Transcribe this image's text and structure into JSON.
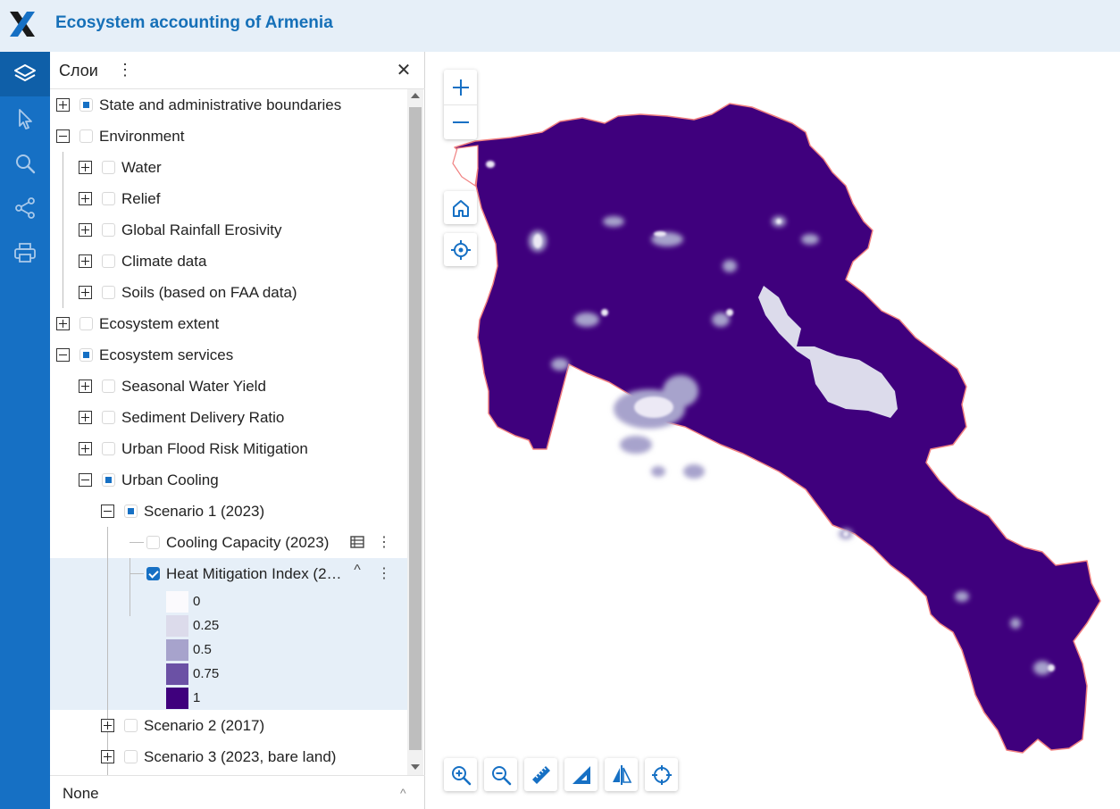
{
  "app": {
    "title": "Ecosystem accounting of Armenia"
  },
  "rail": {
    "tools": [
      "layers-icon",
      "select-pointer-icon",
      "search-icon",
      "share-icon",
      "print-icon"
    ]
  },
  "panel": {
    "title": "Слои",
    "menu_glyph": "⋮",
    "close_glyph": "✕",
    "tree": [
      {
        "label": "State and administrative boundaries",
        "expanded": false,
        "checked": "partial"
      },
      {
        "label": "Environment",
        "expanded": true,
        "checked": "none"
      },
      {
        "label": "Water",
        "expanded": false,
        "checked": "none"
      },
      {
        "label": "Relief",
        "expanded": false,
        "checked": "none"
      },
      {
        "label": "Global Rainfall Erosivity",
        "expanded": false,
        "checked": "none"
      },
      {
        "label": "Climate data",
        "expanded": false,
        "checked": "none"
      },
      {
        "label": "Soils (based on FAA data)",
        "expanded": false,
        "checked": "none"
      },
      {
        "label": "Ecosystem extent",
        "expanded": false,
        "checked": "none"
      },
      {
        "label": "Ecosystem services",
        "expanded": true,
        "checked": "partial"
      },
      {
        "label": "Seasonal Water Yield",
        "expanded": false,
        "checked": "none"
      },
      {
        "label": "Sediment Delivery Ratio",
        "expanded": false,
        "checked": "none"
      },
      {
        "label": "Urban Flood Risk Mitigation",
        "expanded": false,
        "checked": "none"
      },
      {
        "label": "Urban Cooling",
        "expanded": true,
        "checked": "partial"
      },
      {
        "label": "Scenario 1 (2023)",
        "expanded": true,
        "checked": "partial"
      },
      {
        "label": "Cooling Capacity (2023)",
        "checked": "none"
      },
      {
        "label": "Heat Mitigation Index (2…",
        "checked": "checked"
      },
      {
        "label": "Scenario 2 (2017)",
        "expanded": false,
        "checked": "none"
      },
      {
        "label": "Scenario 3 (2023, bare land)",
        "expanded": false,
        "checked": "none"
      }
    ],
    "legend": [
      {
        "value": "0",
        "color": "#fbfafd"
      },
      {
        "value": "0.25",
        "color": "#dcdbeb"
      },
      {
        "value": "0.5",
        "color": "#a7a3cc"
      },
      {
        "value": "0.75",
        "color": "#6b51a5"
      },
      {
        "value": "1",
        "color": "#3f007d"
      }
    ],
    "row_icons": {
      "table": "table-icon",
      "more": "⋮",
      "collapse": "^"
    },
    "footer": {
      "label": "None",
      "caret": "^"
    }
  },
  "map": {
    "fill_color": "#3f007d",
    "border_color": "#f08080",
    "lake_color": "#dcdbeb",
    "controls": [
      "zoom-in-icon",
      "zoom-out-icon",
      "home-icon",
      "locate-icon"
    ],
    "bottom_tools": [
      "zoom-in-box-icon",
      "zoom-out-box-icon",
      "measure-distance-icon",
      "measure-area-icon",
      "compare-swipe-icon",
      "coordinate-target-icon"
    ]
  }
}
